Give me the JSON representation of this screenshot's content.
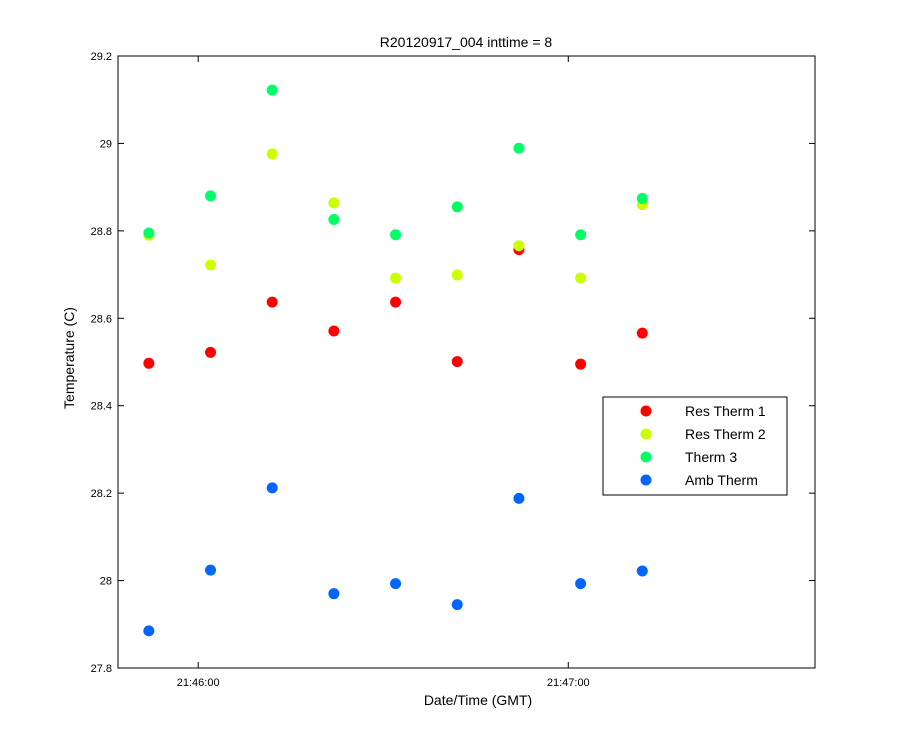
{
  "chart_data": {
    "type": "scatter",
    "title": "R20120917_004 inttime = 8",
    "xlabel": "Date/Time (GMT)",
    "ylabel": "Temperature (C)",
    "ylim": [
      27.8,
      29.2
    ],
    "yticks": [
      "27.8",
      "28",
      "28.2",
      "28.4",
      "28.6",
      "28.8",
      "29",
      "29.2"
    ],
    "xlim": [
      "21:45:47",
      "21:47:40"
    ],
    "xticks": [
      {
        "x": "21:46:00",
        "label": "21:46:00"
      },
      {
        "x": "21:47:00",
        "label": "21:47:00"
      }
    ],
    "x": [
      "21:45:52",
      "21:46:02",
      "21:46:12",
      "21:46:22",
      "21:46:32",
      "21:46:42",
      "21:46:52",
      "21:47:02",
      "21:47:12"
    ],
    "series": [
      {
        "name": "Res Therm 1",
        "color": "#ff0000",
        "values": [
          28.497,
          28.522,
          28.637,
          28.571,
          28.637,
          28.501,
          28.757,
          28.495,
          28.566
        ]
      },
      {
        "name": "Res Therm 2",
        "color": "#ccff00",
        "values": [
          28.79,
          28.722,
          28.976,
          28.864,
          28.692,
          28.699,
          28.766,
          28.692,
          28.86
        ]
      },
      {
        "name": "Therm 3",
        "color": "#00ff66",
        "values": [
          28.795,
          28.88,
          29.122,
          28.826,
          28.791,
          28.855,
          28.989,
          28.791,
          28.874
        ]
      },
      {
        "name": "Amb Therm",
        "color": "#0066ff",
        "values": [
          27.885,
          28.024,
          28.212,
          27.97,
          27.993,
          27.945,
          28.188,
          27.993,
          28.022
        ]
      }
    ],
    "grid": false,
    "legend_position": "right"
  }
}
